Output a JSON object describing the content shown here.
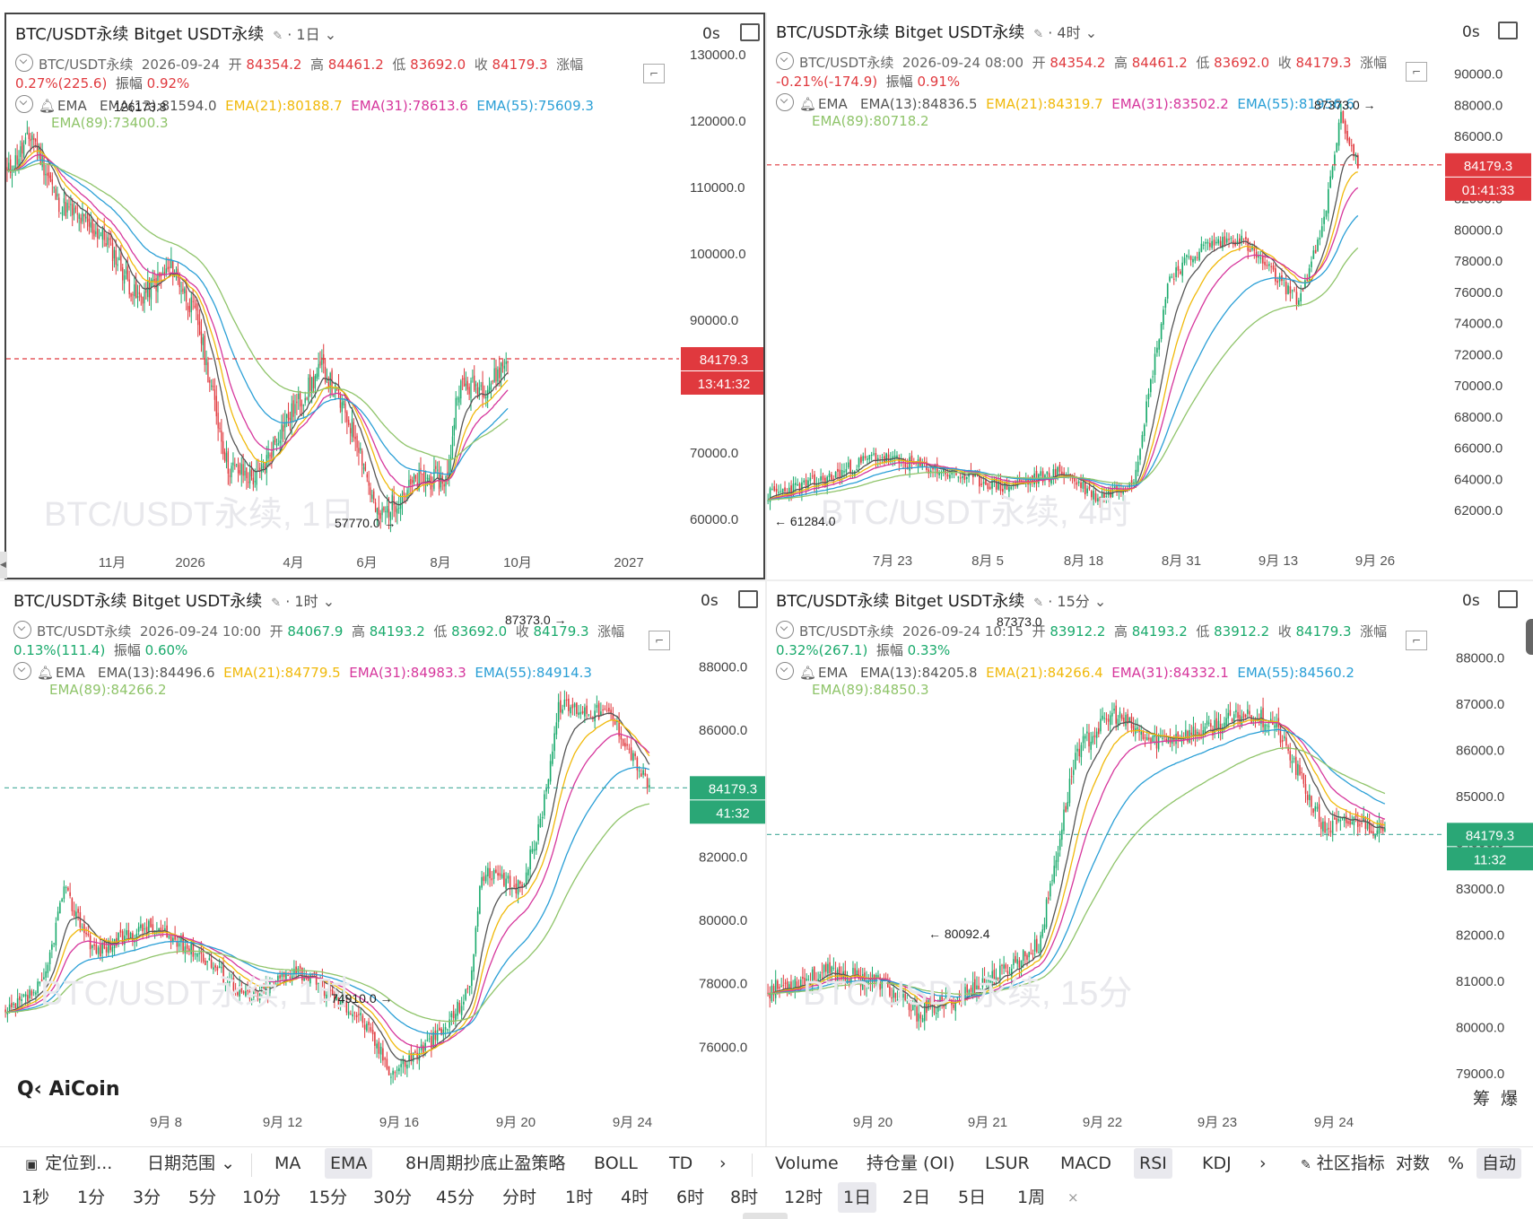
{
  "panels": [
    {
      "id": "daily",
      "title": "BTC/USDT永续 Bitget USDT永续",
      "interval": "· 1日",
      "os": "0s",
      "info": {
        "name": "BTC/USDT永续",
        "date": "2026-09-24",
        "open_l": "开",
        "open": "84354.2",
        "high_l": "高",
        "high": "84461.2",
        "low_l": "低",
        "low": "83692.0",
        "close_l": "收",
        "close": "84179.3",
        "chg_l": "涨幅",
        "chg": "0.27%(225.6)",
        "amp_l": "振幅",
        "amp": "0.92%"
      },
      "ema": {
        "label": "EMA",
        "e13": "EMA(13):81594.0",
        "e21": "EMA(21):80188.7",
        "e31": "EMA(31):78613.6",
        "e55": "EMA(55):75609.3",
        "e89": "EMA(89):73400.3"
      },
      "watermark": "BTC/USDT永续, 1日",
      "price_tag": "84179.3",
      "countdown": "13:41:32",
      "hi_label": "126173.8",
      "lo_label": "57770.0 →",
      "yticks": [
        "130000.0",
        "120000.0",
        "110000.0",
        "100000.0",
        "90000.0",
        "80000.0",
        "70000.0",
        "60000.0"
      ],
      "xticks": [
        "11月",
        "2026",
        "4月",
        "6月",
        "8月",
        "10月",
        "2027"
      ]
    },
    {
      "id": "h4",
      "title": "BTC/USDT永续 Bitget USDT永续",
      "interval": "· 4时",
      "os": "0s",
      "info": {
        "name": "BTC/USDT永续",
        "date": "2026-09-24 08:00",
        "open_l": "开",
        "open": "84354.2",
        "high_l": "高",
        "high": "84461.2",
        "low_l": "低",
        "low": "83692.0",
        "close_l": "收",
        "close": "84179.3",
        "chg_l": "涨幅",
        "chg": "-0.21%(-174.9)",
        "amp_l": "振幅",
        "amp": "0.91%"
      },
      "ema": {
        "label": "EMA",
        "e13": "EMA(13):84836.5",
        "e21": "EMA(21):84319.7",
        "e31": "EMA(31):83502.2",
        "e55": "EMA(55):81956.6",
        "e89": "EMA(89):80718.2"
      },
      "watermark": "BTC/USDT永续, 4时",
      "price_tag": "84179.3",
      "countdown": "01:41:33",
      "hi_label": "87373.0 →",
      "lo_label": "← 61284.0",
      "yticks": [
        "90000.0",
        "88000.0",
        "86000.0",
        "84000.0",
        "82000.0",
        "80000.0",
        "78000.0",
        "76000.0",
        "74000.0",
        "72000.0",
        "70000.0",
        "68000.0",
        "66000.0",
        "64000.0",
        "62000.0"
      ],
      "xticks": [
        "7月 23",
        "8月 5",
        "8月 18",
        "8月 31",
        "9月 13",
        "9月 26"
      ]
    },
    {
      "id": "h1",
      "title": "BTC/USDT永续 Bitget USDT永续",
      "interval": "· 1时",
      "os": "0s",
      "info": {
        "name": "BTC/USDT永续",
        "date": "2026-09-24 10:00",
        "open_l": "开",
        "open": "84067.9",
        "high_l": "高",
        "high": "84193.2",
        "low_l": "低",
        "low": "83692.0",
        "close_l": "收",
        "close": "84179.3",
        "chg_l": "涨幅",
        "chg": "0.13%(111.4)",
        "amp_l": "振幅",
        "amp": "0.60%"
      },
      "ema": {
        "label": "EMA",
        "e13": "EMA(13):84496.6",
        "e21": "EMA(21):84779.5",
        "e31": "EMA(31):84983.3",
        "e55": "EMA(55):84914.3",
        "e89": "EMA(89):84266.2"
      },
      "watermark": "BTC/USDT永续, 1时",
      "price_tag": "84179.3",
      "countdown": "41:32",
      "hi_label": "87373.0 →",
      "lo_label": "74910.0 →",
      "yticks": [
        "88000.0",
        "86000.0",
        "84000.0",
        "82000.0",
        "80000.0",
        "78000.0",
        "76000.0"
      ],
      "xticks": [
        "9月 8",
        "9月 12",
        "9月 16",
        "9月 20",
        "9月 24"
      ],
      "logo": "AiCoin"
    },
    {
      "id": "m15",
      "title": "BTC/USDT永续 Bitget USDT永续",
      "interval": "· 15分",
      "os": "0s",
      "info": {
        "name": "BTC/USDT永续",
        "date": "2026-09-24 10:15",
        "open_l": "开",
        "open": "83912.2",
        "high_l": "高",
        "high": "84193.2",
        "low_l": "低",
        "low": "83912.2",
        "close_l": "收",
        "close": "84179.3",
        "chg_l": "涨幅",
        "chg": "0.32%(267.1)",
        "amp_l": "振幅",
        "amp": "0.33%"
      },
      "ema": {
        "label": "EMA",
        "e13": "EMA(13):84205.8",
        "e21": "EMA(21):84266.4",
        "e31": "EMA(31):84332.1",
        "e55": "EMA(55):84560.2",
        "e89": "EMA(89):84850.3"
      },
      "watermark": "BTC/USDT永续, 15分",
      "price_tag": "84179.3",
      "countdown": "11:32",
      "hi_label": "87373.0",
      "lo_label": "← 80092.4",
      "yticks": [
        "88000.0",
        "87000.0",
        "86000.0",
        "85000.0",
        "84000.0",
        "83000.0",
        "82000.0",
        "81000.0",
        "80000.0",
        "79000.0"
      ],
      "xticks": [
        "9月 20",
        "9月 21",
        "9月 22",
        "9月 23",
        "9月 24"
      ]
    }
  ],
  "toolbar1": {
    "items": [
      "定位到...",
      "日期范围",
      "MA",
      "EMA",
      "8H周期抄底止盈策略",
      "BOLL",
      "TD",
      "Volume",
      "持仓量 (OI)",
      "LSUR",
      "MACD",
      "RSI",
      "KDJ",
      "社区指标",
      "对数",
      "%",
      "自动"
    ]
  },
  "toolbar2": {
    "items": [
      "1秒",
      "1分",
      "3分",
      "5分",
      "10分",
      "15分",
      "30分",
      "45分",
      "分时",
      "1时",
      "4时",
      "6时",
      "8时",
      "12时",
      "1日",
      "2日",
      "5日",
      "1周"
    ],
    "close": "×"
  },
  "corner": {
    "a": "筹",
    "b": "爆"
  },
  "colors": {
    "up": "#1aaa6c",
    "down": "#e0393e",
    "ema13": "#555555",
    "ema21": "#f0b90b",
    "ema31": "#d6369c",
    "ema55": "#2a9fd6",
    "ema89": "#8fc46a"
  }
}
